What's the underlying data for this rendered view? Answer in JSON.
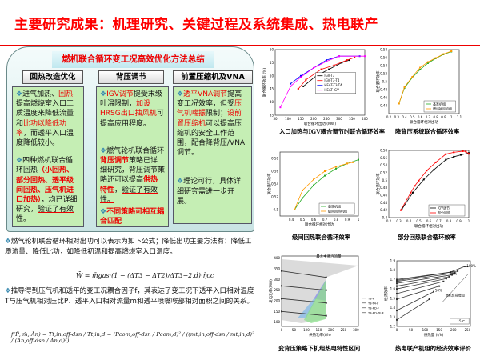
{
  "title": "主要研究成果：机理研究、关键过程及系统集成、热电联产",
  "summary": {
    "banner": "燃机联合循环变工况高效优化方法总结",
    "columns": [
      {
        "header": "回热改造优化",
        "p1": [
          "进气加热、",
          "回热",
          "提高燃烧室入口工质温度来降低流量和",
          "比功以降低功率",
          "，而透平入口温度降低较小。"
        ],
        "p2": [
          "四种燃机联合循环回热",
          "（小回热、部分回热、透平级间回热、压气机进口加热）",
          "，均已详细研究，",
          "验证了有效性。"
        ]
      },
      {
        "header": "背压调节",
        "p1": [
          "IGV调节",
          "提受末级叶温限制，",
          "加设HRSG出口抽风机",
          "可提高应用程度。"
        ],
        "p2": [
          "燃气轮机联合循环",
          "背压调节",
          "策略已详细研究，背压调节策略还可以提高",
          "供热特性",
          "，",
          "验证了有效性。"
        ],
        "p3": "不同策略可相互耦合匹配"
      },
      {
        "header": "前置压缩机及VNA",
        "p1": [
          "透平VNA调节",
          "提高变工况效率，但受",
          "压气机喘振",
          "限制；",
          "设前置压缩机",
          "可以提高压缩机的安全工作范围，配合降背压/VNA调节。"
        ],
        "p2": "理论可行，具体详细研究需进一步开展。"
      }
    ]
  },
  "text1": "燃气轮机联合循环相对出功可以表示为如下公式；降低出功主要方法有：降低工质流量、降低比功，如降低初温和提高燃烧室入口温度。",
  "formula1": "W̄ = m̄gas·(1 − (ΔT3 − ΔT2)/ΔT3−2,d)·η̄cc",
  "text2": "推导得到压气机和透平的变工况耦合因子f，其表达了变工况下透平入口相对温度T与压气机相对压比P、透平入口相对流量m和透平喷嘴喉部相对面积之间的关系。",
  "formula2": "f(P̄, m̄, Ān) = Tt,in,off-dsn / Tt,in,d = (Pcom,off-dsn / Pcom,d)² / ((mt,in,off-dsn / mt,in,d)² / (An,off-dsn / An,d)²)",
  "chart_data": [
    {
      "type": "line",
      "caption": "入口加热与IGV耦合调节时联合循环效率",
      "xlabel": "联合循环出功 (MW)",
      "ylabel": "联合循环效率 (%)",
      "xlim": [
        50,
        400
      ],
      "ylim": [
        35,
        60
      ],
      "xticks": [
        50,
        100,
        150,
        200,
        250,
        300,
        350,
        400
      ],
      "yticks": [
        35,
        40,
        45,
        50,
        55,
        60
      ],
      "legend": "center-right",
      "series": [
        {
          "name": "IGV-T3",
          "color": "#000000",
          "x": [
            160,
            210,
            260,
            310,
            340
          ],
          "y": [
            46,
            50,
            52.5,
            55,
            56
          ]
        },
        {
          "name": "IGV-T3-T4",
          "color": "#ff0000",
          "x": [
            140,
            170,
            230,
            280,
            330,
            360
          ],
          "y": [
            45,
            48.5,
            52.5,
            54,
            56,
            57
          ]
        },
        {
          "name": "HEAT-T3-T4",
          "color": "#0000ff",
          "x": [
            110,
            150,
            200,
            250,
            300,
            380
          ],
          "y": [
            47,
            50,
            53,
            56,
            57.5,
            57.5
          ]
        },
        {
          "name": "HEAT-IGV",
          "color": "#ff00ff",
          "x": [
            70,
            110,
            150,
            200,
            250,
            300,
            400
          ],
          "y": [
            38,
            46,
            49.5,
            53,
            55.5,
            57.5,
            57.5
          ]
        }
      ]
    },
    {
      "type": "line",
      "caption": "降背压系统联合循环效率",
      "xlabel": "联合循环相对出功",
      "ylabel": "联合循环效率",
      "xlim": [
        0.2,
        1.1
      ],
      "ylim": [
        0.42,
        0.58
      ],
      "xticks": [
        0.2,
        0.3,
        0.4,
        0.5,
        0.6,
        0.7,
        0.8,
        0.9,
        1.0,
        1.1
      ],
      "yticks": [
        0.44,
        0.46,
        0.48,
        0.5,
        0.52,
        0.54,
        0.56,
        0.58
      ],
      "legend": "bottom-right",
      "series": [
        {
          "name": "基准机组",
          "color": "#22aa22",
          "x": [
            0.33,
            0.4,
            0.5,
            0.6,
            0.7,
            0.8,
            0.9,
            1.0
          ],
          "y": [
            0.445,
            0.484,
            0.51,
            0.53,
            0.546,
            0.558,
            0.568,
            0.575
          ]
        },
        {
          "name": "增设抽风机组",
          "color": "#ff9900",
          "x": [
            0.33,
            0.4,
            0.5,
            0.6,
            0.7,
            0.8,
            0.9,
            1.0
          ],
          "y": [
            0.445,
            0.486,
            0.512,
            0.535,
            0.549,
            0.559,
            0.569,
            0.576
          ]
        }
      ]
    },
    {
      "type": "line",
      "caption": "级间回热联合循环效率",
      "xlabel": "联合循环相对出功",
      "ylabel": "联合循环效率",
      "xlim": [
        0.3,
        1.0
      ],
      "ylim": [
        0.49,
        0.59
      ],
      "xticks": [
        0.4,
        0.5,
        0.6,
        0.7,
        0.8,
        0.9,
        1.0
      ],
      "yticks": [
        0.5,
        0.52,
        0.54,
        0.56,
        0.58
      ],
      "legend": "bottom-right",
      "series": [
        {
          "name": "基准机组",
          "color": "#22aa22",
          "x": [
            0.43,
            0.5,
            0.6,
            0.7,
            0.8,
            0.9,
            1.0
          ],
          "y": [
            0.5,
            0.518,
            0.538,
            0.553,
            0.564,
            0.572,
            0.578
          ]
        },
        {
          "name": "级间回热机组",
          "color": "#ff9900",
          "x": [
            0.43,
            0.5,
            0.6,
            0.7,
            0.8,
            0.9,
            0.95
          ],
          "y": [
            0.5,
            0.53,
            0.547,
            0.56,
            0.567,
            0.572,
            0.574
          ]
        }
      ]
    },
    {
      "type": "line",
      "caption": "部分回热联合循环效率",
      "xlabel": "联合循环相对出功",
      "ylabel": "联合循环效率",
      "xlim": [
        0.2,
        1.0
      ],
      "ylim": [
        0.4,
        0.58
      ],
      "xticks": [
        0.2,
        0.3,
        0.4,
        0.5,
        0.6,
        0.7,
        0.8,
        0.9,
        1.0
      ],
      "yticks": [
        0.4,
        0.42,
        0.44,
        0.46,
        0.48,
        0.5,
        0.52,
        0.54,
        0.56,
        0.58
      ],
      "legend": "bottom-right",
      "series": [
        {
          "name": "IGV调节",
          "color": "#000000",
          "x": [
            0.33,
            0.44,
            0.55,
            0.65,
            0.77,
            0.85,
            0.92,
            1.0
          ],
          "y": [
            0.422,
            0.467,
            0.502,
            0.528,
            0.555,
            0.563,
            0.568,
            0.573
          ]
        },
        {
          "name": "部分回热",
          "color": "#ff0000",
          "x": [
            0.32,
            0.42,
            0.46,
            0.5,
            0.58,
            0.67,
            0.77,
            0.85,
            0.94,
            0.97,
            1.0
          ],
          "y": [
            0.42,
            0.467,
            0.485,
            0.499,
            0.526,
            0.548,
            0.57,
            0.575,
            0.578,
            0.577,
            0.571
          ]
        }
      ]
    },
    {
      "type": "area",
      "caption": "变背压策略下机组热电特性区间",
      "xlabel": "供热功率(t/h)",
      "ylabel": "发电功率(MW)",
      "xlim": [
        0,
        310
      ],
      "ylim": [
        80,
        410
      ],
      "xticks": [
        0,
        50,
        100,
        150,
        200,
        250,
        300
      ],
      "yticks": [
        100,
        150,
        200,
        250,
        300,
        350,
        400
      ],
      "annotation": "最大主蒸汽流量",
      "regions": [
        {
          "color": "#cccccc",
          "x": [
            0,
            0,
            310,
            180,
            180,
            80,
            0
          ],
          "y": [
            110,
            395,
            365,
            310,
            115,
            95,
            110
          ]
        },
        {
          "color": "#7fb8e8",
          "x": [
            65,
            130,
            180,
            100
          ],
          "y": [
            120,
            210,
            300,
            120
          ]
        },
        {
          "color": "#9a8fe8",
          "x": [
            130,
            180,
            180
          ],
          "y": [
            210,
            300,
            200
          ]
        },
        {
          "color": "#88e088",
          "x": [
            90,
            180,
            180,
            120
          ],
          "y": [
            110,
            300,
            115,
            95
          ]
        }
      ],
      "series": [
        {
          "name": "T3-F",
          "color": "#333333",
          "x": [
            0,
            180
          ],
          "y": [
            340,
            310
          ]
        },
        {
          "name": "T3-T4-F",
          "color": "#333333",
          "x": [
            0,
            180
          ],
          "y": [
            270,
            250
          ]
        },
        {
          "name": "T3-PD-F",
          "color": "#333333",
          "x": [
            0,
            180
          ],
          "y": [
            210,
            190
          ]
        },
        {
          "name": "T3-PD-PE-F",
          "color": "#333333",
          "x": [
            0,
            180
          ],
          "y": [
            150,
            130
          ]
        }
      ]
    },
    {
      "type": "line",
      "caption": "热电联产机组的经济效率评价",
      "xlabel": "供热量 (t/h)",
      "ylabel": "经济效率",
      "xlim": [
        0,
        260
      ],
      "ylim": [
        1.2,
        1.9
      ],
      "xticks": [
        0,
        50,
        100,
        150,
        200,
        250
      ],
      "yticks": [
        1.2,
        1.3,
        1.4,
        1.5,
        1.6,
        1.7,
        1.8,
        1.9
      ],
      "legend": "bottom-right",
      "legend_label": "15℃",
      "labels": [
        "100%",
        "80%",
        "50%",
        "燃机负荷增加"
      ],
      "series": [
        {
          "color": "#333333",
          "x": [
            0,
            115
          ],
          "y": [
            1.27,
            1.49
          ]
        },
        {
          "color": "#333333",
          "x": [
            0,
            130
          ],
          "y": [
            1.37,
            1.57
          ]
        },
        {
          "color": "#333333",
          "x": [
            0,
            150
          ],
          "y": [
            1.49,
            1.63
          ]
        },
        {
          "color": "#333333",
          "x": [
            0,
            165
          ],
          "y": [
            1.55,
            1.68
          ]
        },
        {
          "color": "#333333",
          "x": [
            0,
            175
          ],
          "y": [
            1.6,
            1.71
          ]
        },
        {
          "color": "#333333",
          "x": [
            0,
            185
          ],
          "y": [
            1.63,
            1.73
          ]
        },
        {
          "color": "#333333",
          "x": [
            0,
            195
          ],
          "y": [
            1.66,
            1.75
          ]
        },
        {
          "color": "#333333",
          "x": [
            0,
            205
          ],
          "y": [
            1.68,
            1.77
          ]
        },
        {
          "color": "#333333",
          "x": [
            0,
            215
          ],
          "y": [
            1.69,
            1.79
          ]
        },
        {
          "color": "#333333",
          "x": [
            0,
            190,
            240,
            250
          ],
          "y": [
            1.7,
            1.78,
            1.84,
            1.84
          ]
        }
      ]
    }
  ]
}
